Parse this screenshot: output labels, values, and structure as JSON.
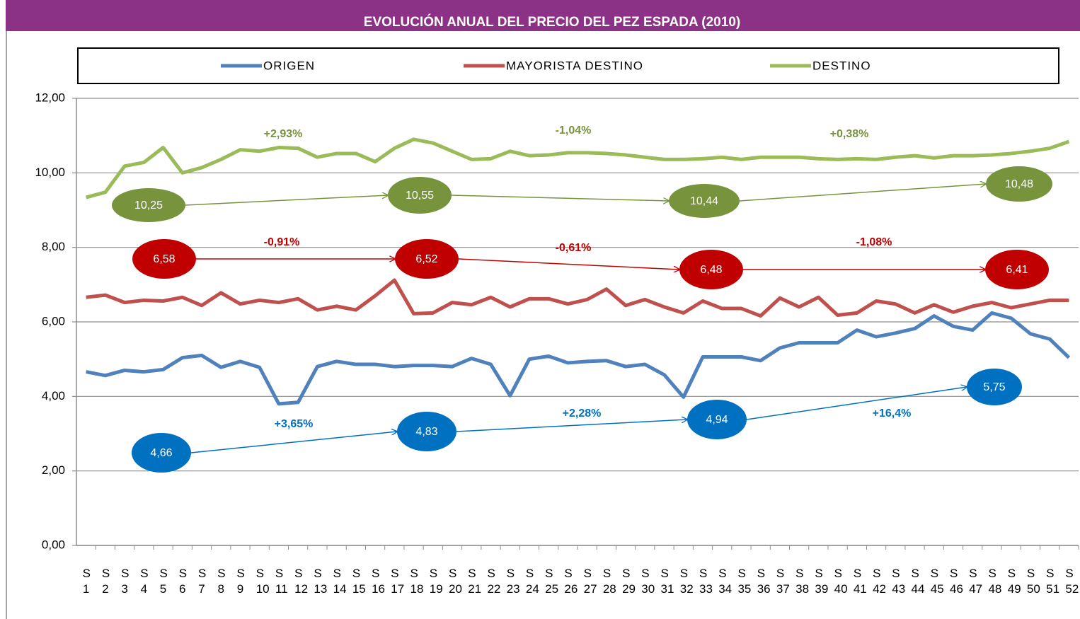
{
  "chart_data": {
    "type": "line",
    "title": "EVOLUCIÓN ANUAL DEL PRECIO DEL PEZ ESPADA (2010)",
    "categories": [
      "S 1",
      "S 2",
      "S 3",
      "S 4",
      "S 5",
      "S 6",
      "S 7",
      "S 8",
      "S 9",
      "S 10",
      "S 11",
      "S 12",
      "S 13",
      "S 14",
      "S 15",
      "S 16",
      "S 17",
      "S 18",
      "S 19",
      "S 20",
      "S 21",
      "S 22",
      "S 23",
      "S 24",
      "S 25",
      "S 26",
      "S 27",
      "S 28",
      "S 29",
      "S 30",
      "S 31",
      "S 32",
      "S 33",
      "S 34",
      "S 35",
      "S 36",
      "S 37",
      "S 38",
      "S 39",
      "S 40",
      "S 41",
      "S 42",
      "S 43",
      "S 44",
      "S 45",
      "S 46",
      "S 47",
      "S 48",
      "S 49",
      "S 50",
      "S 51",
      "S 52"
    ],
    "series": [
      {
        "name": "ORIGEN",
        "color": "#4f81bd",
        "values": [
          4.66,
          4.56,
          4.7,
          4.66,
          4.72,
          5.04,
          5.1,
          4.78,
          4.94,
          4.78,
          3.8,
          3.84,
          4.8,
          4.94,
          4.86,
          4.86,
          4.8,
          4.83,
          4.83,
          4.8,
          5.02,
          4.86,
          4.02,
          5.0,
          5.08,
          4.9,
          4.94,
          4.96,
          4.8,
          4.86,
          4.58,
          3.98,
          5.06,
          5.06,
          5.06,
          4.96,
          5.3,
          5.44,
          5.44,
          5.44,
          5.78,
          5.6,
          5.7,
          5.82,
          6.16,
          5.88,
          5.78,
          6.24,
          6.1,
          5.68,
          5.54,
          5.04
        ]
      },
      {
        "name": "MAYORISTA DESTINO",
        "color": "#c0504d",
        "values": [
          6.66,
          6.72,
          6.52,
          6.58,
          6.56,
          6.66,
          6.44,
          6.78,
          6.48,
          6.58,
          6.52,
          6.62,
          6.32,
          6.42,
          6.32,
          6.7,
          7.12,
          6.22,
          6.24,
          6.52,
          6.46,
          6.66,
          6.4,
          6.62,
          6.62,
          6.48,
          6.6,
          6.88,
          6.44,
          6.6,
          6.4,
          6.24,
          6.56,
          6.36,
          6.36,
          6.16,
          6.64,
          6.4,
          6.66,
          6.18,
          6.24,
          6.56,
          6.48,
          6.24,
          6.46,
          6.26,
          6.42,
          6.52,
          6.38,
          6.48,
          6.58,
          6.58
        ]
      },
      {
        "name": "DESTINO",
        "color": "#9bbb59",
        "values": [
          9.34,
          9.48,
          10.18,
          10.28,
          10.68,
          10.0,
          10.14,
          10.36,
          10.62,
          10.58,
          10.68,
          10.66,
          10.42,
          10.52,
          10.52,
          10.3,
          10.66,
          10.9,
          10.8,
          10.58,
          10.36,
          10.38,
          10.58,
          10.46,
          10.48,
          10.54,
          10.54,
          10.52,
          10.48,
          10.42,
          10.36,
          10.36,
          10.38,
          10.42,
          10.36,
          10.42,
          10.42,
          10.42,
          10.38,
          10.36,
          10.38,
          10.36,
          10.42,
          10.46,
          10.4,
          10.46,
          10.46,
          10.48,
          10.52,
          10.58,
          10.66,
          10.84
        ]
      }
    ],
    "ylim": [
      0,
      12
    ],
    "yticks": [
      {
        "value": 0,
        "label": "0,00"
      },
      {
        "value": 2,
        "label": "2,00"
      },
      {
        "value": 4,
        "label": "4,00"
      },
      {
        "value": 6,
        "label": "6,00"
      },
      {
        "value": 8,
        "label": "8,00"
      },
      {
        "value": 10,
        "label": "10,00"
      },
      {
        "value": 12,
        "label": "12,00"
      }
    ],
    "grid": true,
    "legend": "top",
    "annotations": [
      {
        "color": "#0070c0",
        "averages": [
          "4,66",
          "4,83",
          "4,94",
          "5,75"
        ],
        "changes": [
          "+3,65%",
          "+2,28%",
          "+16,4%"
        ]
      },
      {
        "color": "#c00000",
        "averages": [
          "6,58",
          "6,52",
          "6,48",
          "6,41"
        ],
        "changes": [
          "-0,91%",
          "-0,61%",
          "-1,08%"
        ]
      },
      {
        "color": "#77933c",
        "averages": [
          "10,25",
          "10,55",
          "10,44",
          "10,48"
        ],
        "changes": [
          "+2,93%",
          "-1,04%",
          "+0,38%"
        ]
      }
    ]
  }
}
